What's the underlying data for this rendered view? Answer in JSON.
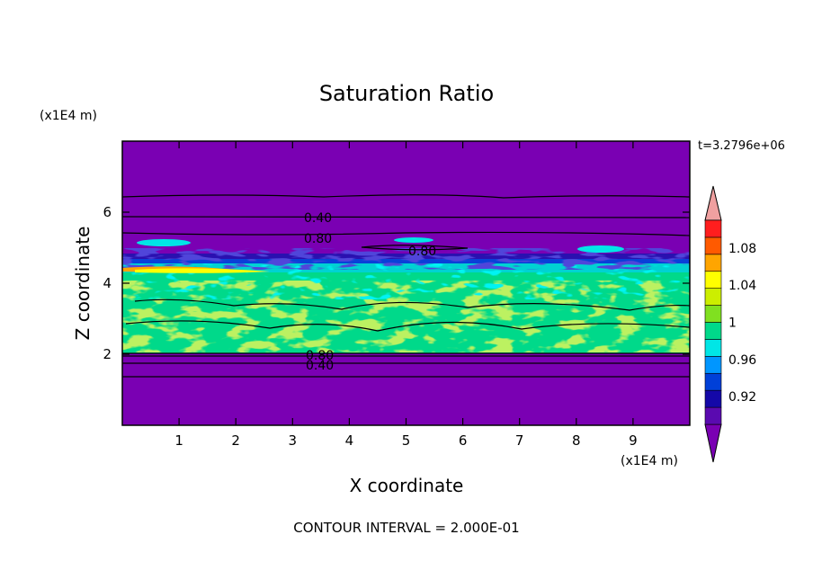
{
  "chart_data": {
    "type": "heatmap",
    "title": "Saturation Ratio",
    "xlabel": "X coordinate",
    "ylabel": "Z coordinate",
    "x_unit": "(x1E4 m)",
    "y_unit": "(x1E4 m)",
    "xlim": [
      0,
      10
    ],
    "ylim": [
      0,
      8
    ],
    "x_ticks": [
      "1",
      "2",
      "3",
      "4",
      "5",
      "6",
      "7",
      "8",
      "9"
    ],
    "y_ticks": [
      "2",
      "4",
      "6"
    ],
    "time_label": "t=3.2796e+06",
    "footer": "CONTOUR INTERVAL = 2.000E-01",
    "contour_labels": [
      "0.40",
      "0.80",
      "0.80",
      "0.80",
      "0.40"
    ],
    "colorbar": {
      "labels": [
        "1.08",
        "1.04",
        "1",
        "0.96",
        "0.92"
      ],
      "levels": [
        0.9,
        0.92,
        0.94,
        0.96,
        0.98,
        1.0,
        1.02,
        1.04,
        1.06,
        1.08,
        1.1
      ],
      "colors": [
        "#7a00b3",
        "#5a0ab0",
        "#1408a8",
        "#0040d8",
        "#0096ff",
        "#00e6e6",
        "#00d98a",
        "#80e020",
        "#ccee00",
        "#ffff00",
        "#ffa500",
        "#ff5a00",
        "#ff1e1e",
        "#f0a0a0"
      ]
    },
    "bands": [
      {
        "z_range": [
          0,
          2.0
        ],
        "value": "<0.90"
      },
      {
        "z_range": [
          2.0,
          4.5
        ],
        "value": "0.96-1.04"
      },
      {
        "z_range": [
          4.5,
          5.2
        ],
        "value": "0.90-1.02"
      },
      {
        "z_range": [
          5.2,
          8
        ],
        "value": "<0.90"
      }
    ]
  }
}
